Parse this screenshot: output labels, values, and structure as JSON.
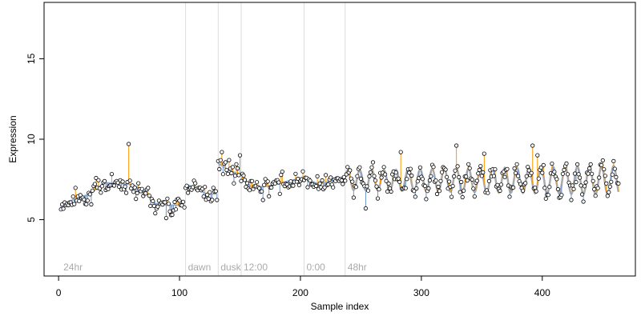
{
  "chart_data": {
    "type": "scatter",
    "xlabel": "Sample index",
    "ylabel": "Expression",
    "xlim": [
      -12,
      477
    ],
    "ylim": [
      1.5,
      18.5
    ],
    "x_ticks": [
      0,
      100,
      200,
      300,
      400
    ],
    "y_ticks": [
      5,
      10,
      15
    ],
    "colors": {
      "fit_line": "#99b3d9",
      "smooth_line": "#aaaaaa",
      "residual_up": "#ff9900",
      "residual_down": "#6f95cf",
      "boundary": "#dddddd",
      "region_label": "#aaaaaa",
      "point_fill": "#ffffff",
      "point_stroke": "#000000"
    },
    "regions": [
      {
        "start": 2,
        "label": "24hr"
      },
      {
        "start": 105,
        "label": "dawn"
      },
      {
        "start": 132,
        "label": "dusk"
      },
      {
        "start": 151,
        "label": "12:00"
      },
      {
        "start": 203,
        "label": "0:00"
      },
      {
        "start": 237,
        "label": "48hr"
      }
    ],
    "fit_segments": [
      {
        "from": 2,
        "to": 104,
        "type": "segmented",
        "steps": [
          [
            2,
            5.9
          ],
          [
            14,
            6.3
          ],
          [
            26,
            6.6
          ],
          [
            38,
            7.3
          ],
          [
            58,
            7.2
          ],
          [
            70,
            6.9
          ],
          [
            80,
            6.0
          ],
          [
            90,
            5.9
          ],
          [
            104,
            5.9
          ]
        ]
      },
      {
        "from": 105,
        "to": 131,
        "type": "segmented",
        "steps": [
          [
            105,
            7.2
          ],
          [
            113,
            7.0
          ],
          [
            122,
            6.6
          ],
          [
            131,
            6.6
          ]
        ]
      },
      {
        "from": 132,
        "to": 150,
        "type": "segmented",
        "steps": [
          [
            132,
            8.5
          ],
          [
            140,
            8.1
          ],
          [
            150,
            7.8
          ]
        ]
      },
      {
        "from": 151,
        "to": 202,
        "type": "segmented",
        "steps": [
          [
            151,
            7.6
          ],
          [
            160,
            7.0
          ],
          [
            175,
            7.1
          ],
          [
            190,
            7.4
          ],
          [
            202,
            7.6
          ]
        ]
      },
      {
        "from": 203,
        "to": 236,
        "type": "segmented",
        "steps": [
          [
            203,
            7.6
          ],
          [
            215,
            7.2
          ],
          [
            225,
            7.4
          ],
          [
            236,
            7.7
          ]
        ]
      },
      {
        "from": 237,
        "to": 463,
        "type": "oscillating",
        "mean": 7.45,
        "amp_start": 0.6,
        "amp_end": 0.9,
        "period": 10,
        "phase": 0.3
      }
    ],
    "points": {
      "count": 463,
      "seed": 7,
      "noise_sd": 0.45,
      "outliers": [
        [
          58,
          9.7
        ],
        [
          89,
          5.1
        ],
        [
          135,
          9.2
        ],
        [
          150,
          9.0
        ],
        [
          283,
          9.2
        ],
        [
          329,
          9.6
        ],
        [
          352,
          9.1
        ],
        [
          392,
          9.6
        ],
        [
          396,
          9.0
        ],
        [
          254,
          5.7
        ],
        [
          202,
          8.0
        ]
      ]
    }
  }
}
